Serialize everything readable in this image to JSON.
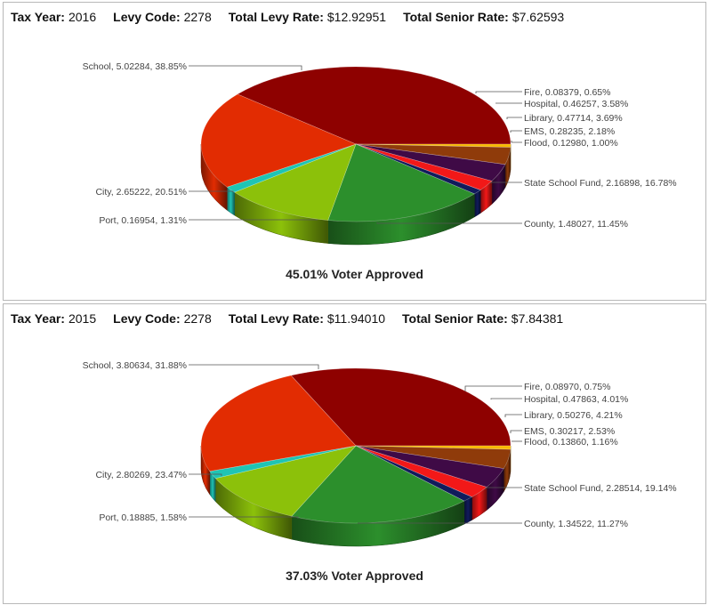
{
  "colors": {
    "School": "#8e0100",
    "Fire": "#f7b800",
    "Hospital": "#8f3b0a",
    "Library": "#3f0a46",
    "EMS": "#f21818",
    "Flood": "#111b5c",
    "State School Fund": "#2c8f2c",
    "County": "#8cc10a",
    "Port": "#1fc4b4",
    "City": "#e22c02"
  },
  "chart_data": [
    {
      "type": "pie",
      "tax_year_label": "Tax Year:",
      "tax_year": "2016",
      "levy_code_label": "Levy Code:",
      "levy_code": "2278",
      "total_levy_label": "Total Levy Rate:",
      "total_levy_rate": "$12.92951",
      "total_senior_label": "Total Senior Rate:",
      "total_senior_rate": "$7.62593",
      "voter_approved": "45.01% Voter Approved",
      "slices": [
        {
          "name": "School",
          "value": 5.02284,
          "percent": 38.85,
          "label": "School, 5.02284, 38.85%"
        },
        {
          "name": "Fire",
          "value": 0.08379,
          "percent": 0.65,
          "label": "Fire, 0.08379, 0.65%"
        },
        {
          "name": "Hospital",
          "value": 0.46257,
          "percent": 3.58,
          "label": "Hospital, 0.46257, 3.58%"
        },
        {
          "name": "Library",
          "value": 0.47714,
          "percent": 3.69,
          "label": "Library, 0.47714, 3.69%"
        },
        {
          "name": "EMS",
          "value": 0.28235,
          "percent": 2.18,
          "label": "EMS, 0.28235, 2.18%"
        },
        {
          "name": "Flood",
          "value": 0.1298,
          "percent": 1.0,
          "label": "Flood, 0.12980, 1.00%"
        },
        {
          "name": "State School Fund",
          "value": 2.16898,
          "percent": 16.78,
          "label": "State School Fund, 2.16898, 16.78%"
        },
        {
          "name": "County",
          "value": 1.48027,
          "percent": 11.45,
          "label": "County, 1.48027, 11.45%"
        },
        {
          "name": "Port",
          "value": 0.16954,
          "percent": 1.31,
          "label": "Port, 0.16954, 1.31%"
        },
        {
          "name": "City",
          "value": 2.65222,
          "percent": 20.51,
          "label": "City, 2.65222, 20.51%"
        }
      ]
    },
    {
      "type": "pie",
      "tax_year_label": "Tax Year:",
      "tax_year": "2015",
      "levy_code_label": "Levy Code:",
      "levy_code": "2278",
      "total_levy_label": "Total Levy Rate:",
      "total_levy_rate": "$11.94010",
      "total_senior_label": "Total Senior Rate:",
      "total_senior_rate": "$7.84381",
      "voter_approved": "37.03% Voter Approved",
      "slices": [
        {
          "name": "School",
          "value": 3.80634,
          "percent": 31.88,
          "label": "School, 3.80634, 31.88%"
        },
        {
          "name": "Fire",
          "value": 0.0897,
          "percent": 0.75,
          "label": "Fire, 0.08970, 0.75%"
        },
        {
          "name": "Hospital",
          "value": 0.47863,
          "percent": 4.01,
          "label": "Hospital, 0.47863, 4.01%"
        },
        {
          "name": "Library",
          "value": 0.50276,
          "percent": 4.21,
          "label": "Library, 0.50276, 4.21%"
        },
        {
          "name": "EMS",
          "value": 0.30217,
          "percent": 2.53,
          "label": "EMS, 0.30217, 2.53%"
        },
        {
          "name": "Flood",
          "value": 0.1386,
          "percent": 1.16,
          "label": "Flood, 0.13860, 1.16%"
        },
        {
          "name": "State School Fund",
          "value": 2.28514,
          "percent": 19.14,
          "label": "State School Fund, 2.28514, 19.14%"
        },
        {
          "name": "County",
          "value": 1.34522,
          "percent": 11.27,
          "label": "County, 1.34522, 11.27%"
        },
        {
          "name": "Port",
          "value": 0.18885,
          "percent": 1.58,
          "label": "Port, 0.18885, 1.58%"
        },
        {
          "name": "City",
          "value": 2.80269,
          "percent": 23.47,
          "label": "City, 2.80269, 23.47%"
        }
      ]
    }
  ]
}
